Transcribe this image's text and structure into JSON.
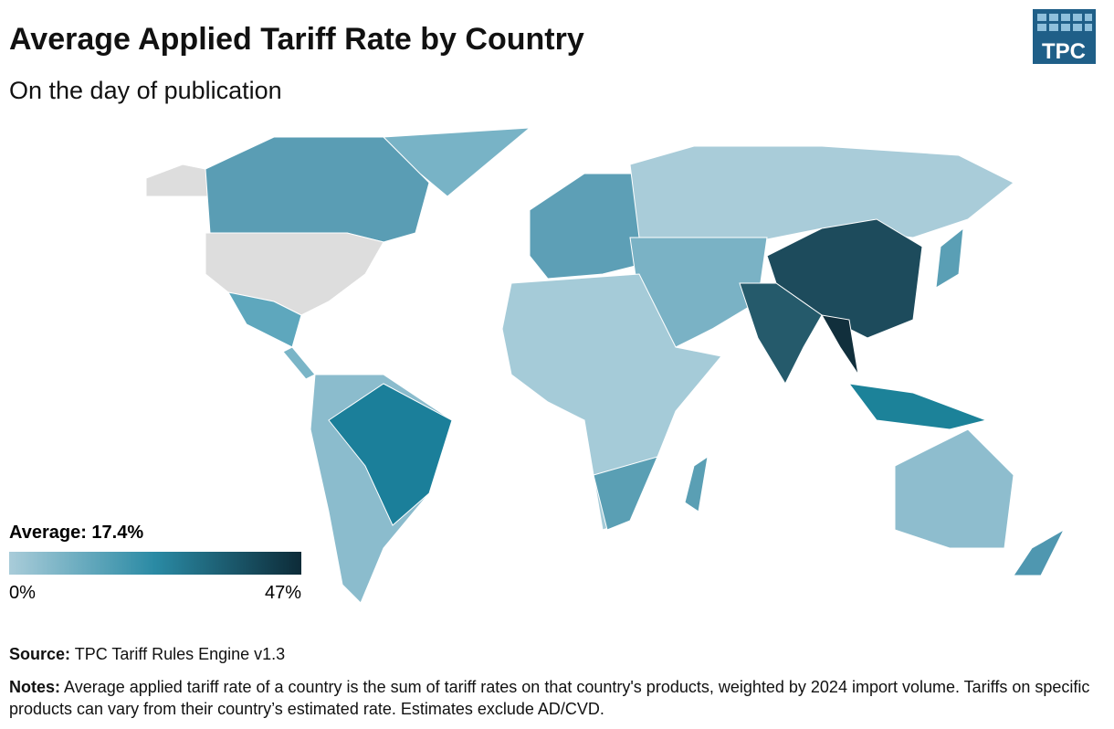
{
  "header": {
    "title": "Average Applied Tariff Rate by Country",
    "subtitle": "On the day of publication",
    "logo": "TPC"
  },
  "legend": {
    "title": "Average: 17.4%",
    "colors": [
      "#a9ccd9",
      "#2a8aa4",
      "#0d2b38"
    ],
    "ticks": [
      {
        "value": 0,
        "label": "0%"
      },
      {
        "value": 47,
        "label": "47%"
      }
    ]
  },
  "footer": {
    "source_label": "Source:",
    "source": "TPC Tariff Rules Engine v1.3",
    "notes_label": "Notes:",
    "notes": "Average applied tariff rate of a country is the sum of tariff rates on that country's products, weighted by 2024 import volume. Tariffs on specific products can vary from their country’s estimated rate. Estimates exclude AD/CVD."
  }
}
